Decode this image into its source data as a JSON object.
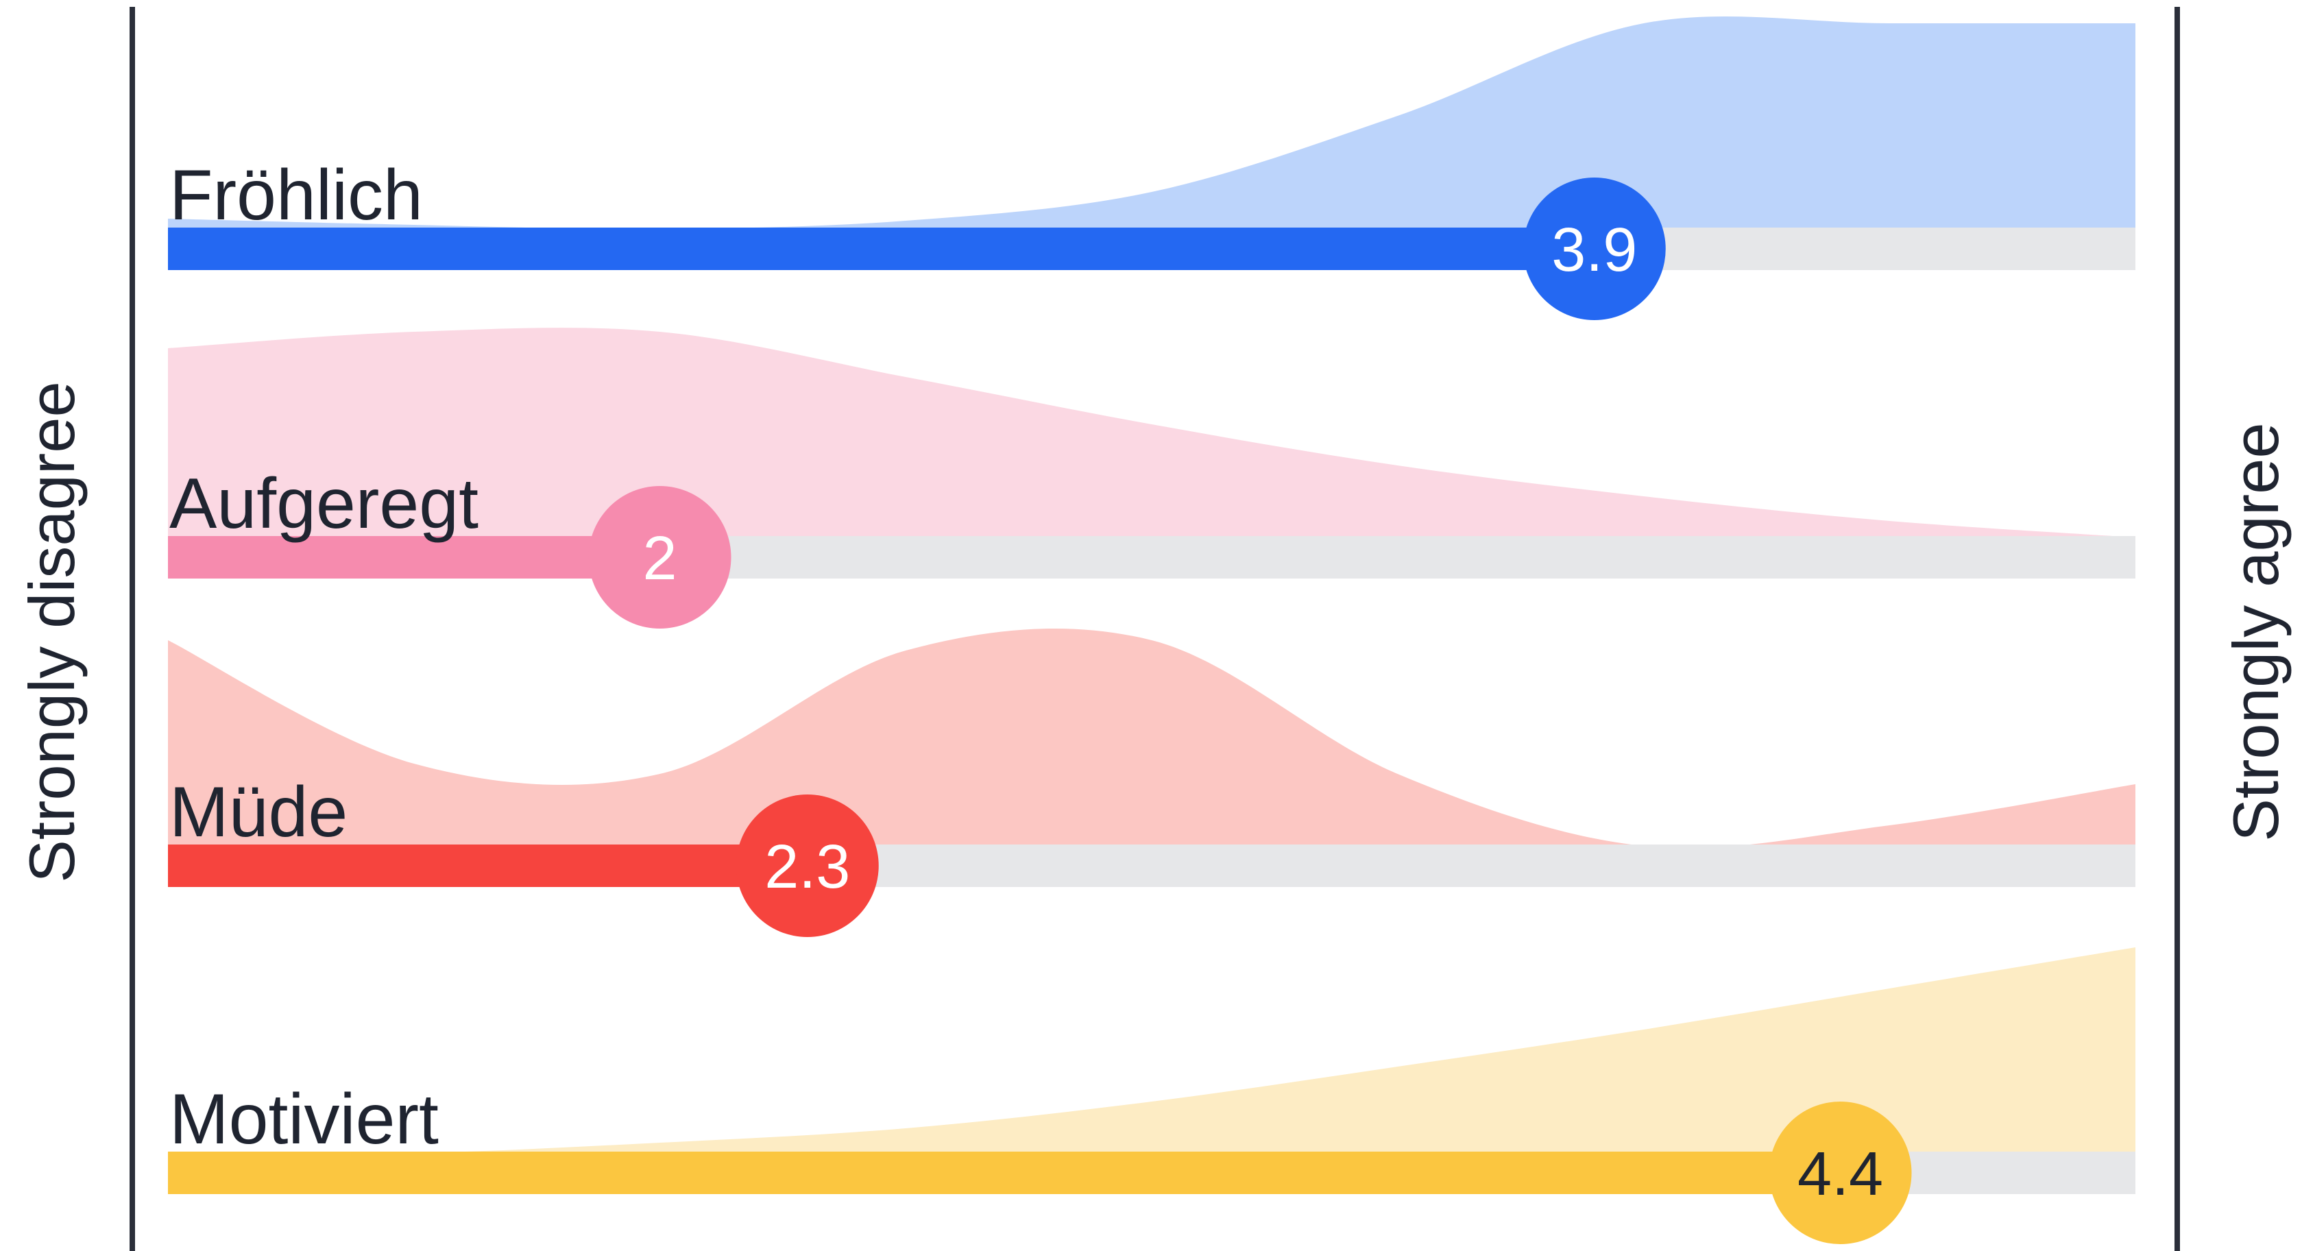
{
  "chart_data": {
    "type": "area",
    "scale": {
      "min": 1,
      "max": 5
    },
    "scale_labels": {
      "left": "Strongly disagree",
      "right": "Strongly agree"
    },
    "density_x": [
      1,
      1.5,
      2,
      2.5,
      3,
      3.5,
      4,
      4.5,
      5
    ],
    "series": [
      {
        "name": "Fröhlich",
        "value": 3.9,
        "value_label": "3.9",
        "color": "#2468f2",
        "fill": "#bcd4fb",
        "text_color": "#ffffff",
        "density": [
          0.05,
          0.02,
          0.0,
          0.04,
          0.18,
          0.55,
          1.0,
          1.0,
          1.0
        ]
      },
      {
        "name": "Aufgeregt",
        "value": 2.0,
        "value_label": "2",
        "color": "#f68bae",
        "fill": "#fbd8e3",
        "text_color": "#ffffff",
        "density": [
          0.92,
          1.0,
          1.0,
          0.78,
          0.55,
          0.35,
          0.2,
          0.08,
          0.0
        ]
      },
      {
        "name": "Müde",
        "value": 2.3,
        "value_label": "2.3",
        "color": "#f6443e",
        "fill": "#fcc7c3",
        "text_color": "#ffffff",
        "density": [
          1.0,
          0.4,
          0.35,
          0.95,
          1.0,
          0.35,
          0.0,
          0.1,
          0.3
        ]
      },
      {
        "name": "Motiviert",
        "value": 4.4,
        "value_label": "4.4",
        "color": "#fbc640",
        "fill": "#fdecc4",
        "text_color": "#1f2430",
        "density": [
          0.0,
          0.0,
          0.05,
          0.12,
          0.25,
          0.42,
          0.6,
          0.8,
          1.0
        ]
      }
    ]
  }
}
